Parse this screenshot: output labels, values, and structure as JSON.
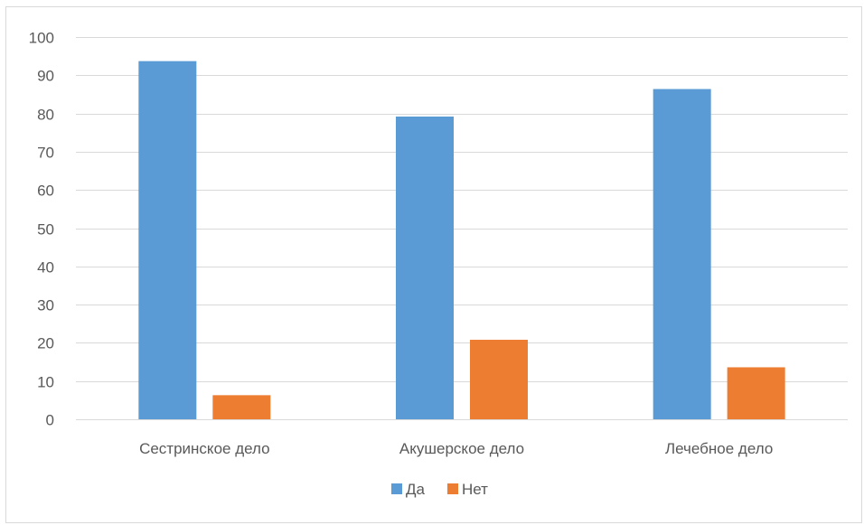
{
  "chart_data": {
    "type": "bar",
    "categories": [
      "Сестринское дело",
      "Акушерское дело",
      "Лечебное дело"
    ],
    "series": [
      {
        "name": "Да",
        "values": [
          93.7,
          79.2,
          86.4
        ],
        "color": "#5b9bd5"
      },
      {
        "name": "Нет",
        "values": [
          6.3,
          20.8,
          13.6
        ],
        "color": "#ed7d31"
      }
    ],
    "ylim": [
      0,
      100
    ],
    "yticks": [
      0,
      10,
      20,
      30,
      40,
      50,
      60,
      70,
      80,
      90,
      100
    ],
    "grid": true,
    "legend_position": "bottom"
  }
}
